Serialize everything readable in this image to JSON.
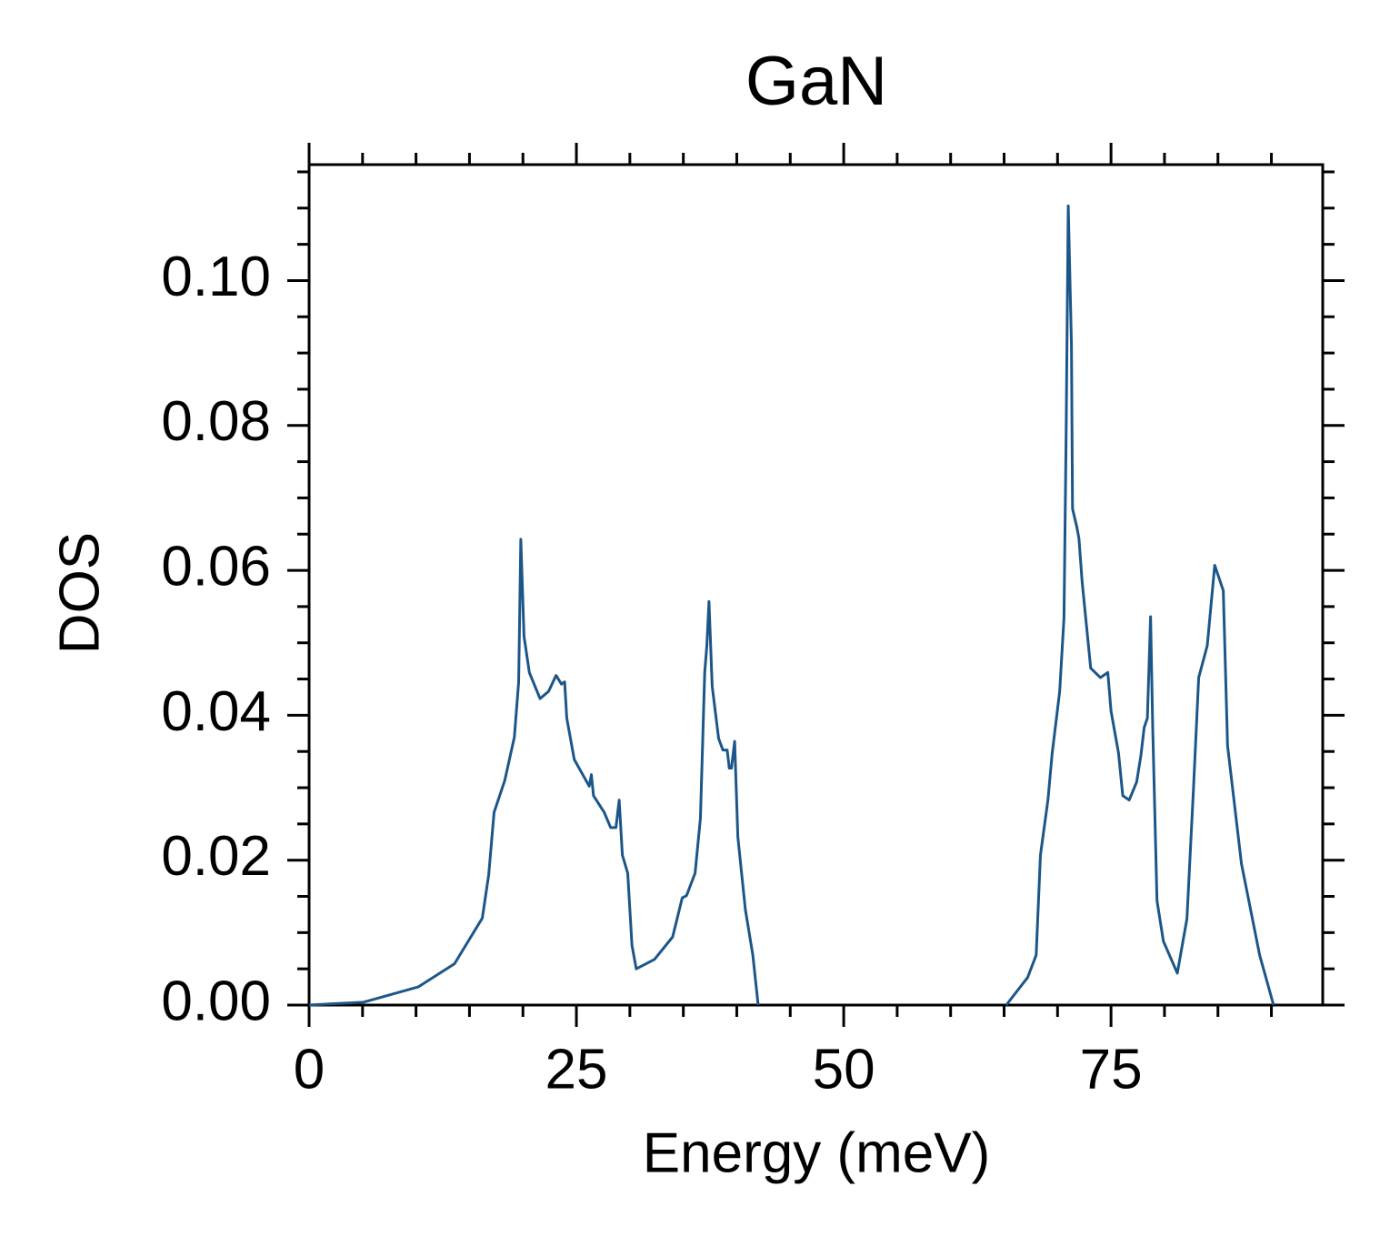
{
  "chart_data": {
    "type": "line",
    "title": "GaN",
    "xlabel": "Energy (meV)",
    "ylabel": "DOS",
    "xlim": [
      0,
      94.8
    ],
    "ylim": [
      0,
      0.116
    ],
    "xticks": [
      0,
      25,
      50,
      75
    ],
    "yticks": [
      {
        "value": 0,
        "label": "0.00"
      },
      {
        "value": 0.02,
        "label": "0.02"
      },
      {
        "value": 0.04,
        "label": "0.04"
      },
      {
        "value": 0.06,
        "label": "0.06"
      },
      {
        "value": 0.08,
        "label": "0.08"
      },
      {
        "value": 0.1,
        "label": "0.10"
      }
    ],
    "xminorticks": [
      5,
      10,
      15,
      20,
      30,
      35,
      40,
      45,
      55,
      60,
      65,
      70,
      80,
      85,
      90
    ],
    "yminorticks": [
      0.005,
      0.01,
      0.015,
      0.025,
      0.03,
      0.035,
      0.045,
      0.05,
      0.055,
      0.065,
      0.07,
      0.075,
      0.085,
      0.09,
      0.095,
      0.105,
      0.11,
      0.115
    ],
    "ticks_mirrored": true,
    "grid": false,
    "x": [
      0,
      5.1,
      10.2,
      13.6,
      16.2,
      16.8,
      17.3,
      18.3,
      19.2,
      19.6,
      19.8,
      20.1,
      20.6,
      21.6,
      22.4,
      23.1,
      23.6,
      23.9,
      24.1,
      24.8,
      25.9,
      26.2,
      26.4,
      26.6,
      27.6,
      28.2,
      28.7,
      29.0,
      29.3,
      29.8,
      30.2,
      30.6,
      32.3,
      34.0,
      34.9,
      35.3,
      36.1,
      36.6,
      37.0,
      37.2,
      37.4,
      37.7,
      38.3,
      38.7,
      39.1,
      39.3,
      39.5,
      39.8,
      40.1,
      40.8,
      41.5,
      42.0,
      53,
      65.2,
      67.2,
      68.0,
      68.4,
      69.1,
      69.5,
      70.2,
      70.6,
      70.8,
      71.0,
      71.3,
      71.4,
      71.8,
      72.0,
      72.3,
      73.1,
      74.0,
      74.7,
      75.0,
      75.7,
      76.1,
      76.7,
      77.4,
      77.8,
      78.1,
      78.4,
      78.7,
      78.9,
      79.3,
      79.9,
      81.2,
      82.1,
      82.7,
      83.2,
      84.0,
      84.7,
      85.5,
      85.9,
      87.2,
      88.9,
      90.2
    ],
    "series": [
      {
        "color": "#1c5689",
        "values": [
          0,
          0.0004,
          0.0025,
          0.0057,
          0.012,
          0.018,
          0.0266,
          0.031,
          0.037,
          0.0446,
          0.0643,
          0.0509,
          0.0459,
          0.0423,
          0.0433,
          0.0455,
          0.0443,
          0.0446,
          0.0396,
          0.0339,
          0.031,
          0.0302,
          0.0318,
          0.0289,
          0.0266,
          0.0245,
          0.0245,
          0.0283,
          0.0207,
          0.0182,
          0.0082,
          0.005,
          0.0063,
          0.0094,
          0.0148,
          0.0151,
          0.0182,
          0.0258,
          0.0459,
          0.0496,
          0.0557,
          0.044,
          0.0368,
          0.0352,
          0.0352,
          0.0327,
          0.0327,
          0.0364,
          0.0232,
          0.0132,
          0.0069,
          0,
          null,
          0,
          0.0038,
          0.0069,
          0.0207,
          0.0283,
          0.0348,
          0.0433,
          0.0534,
          0.0785,
          0.1103,
          0.0911,
          0.0685,
          0.066,
          0.0644,
          0.0584,
          0.0465,
          0.0452,
          0.0459,
          0.0406,
          0.0348,
          0.0289,
          0.0283,
          0.0308,
          0.0345,
          0.0383,
          0.0396,
          0.0536,
          0.0383,
          0.0144,
          0.0088,
          0.0044,
          0.0119,
          0.0295,
          0.0452,
          0.0496,
          0.0607,
          0.0572,
          0.0358,
          0.0195,
          0.0069,
          0
        ]
      }
    ]
  }
}
